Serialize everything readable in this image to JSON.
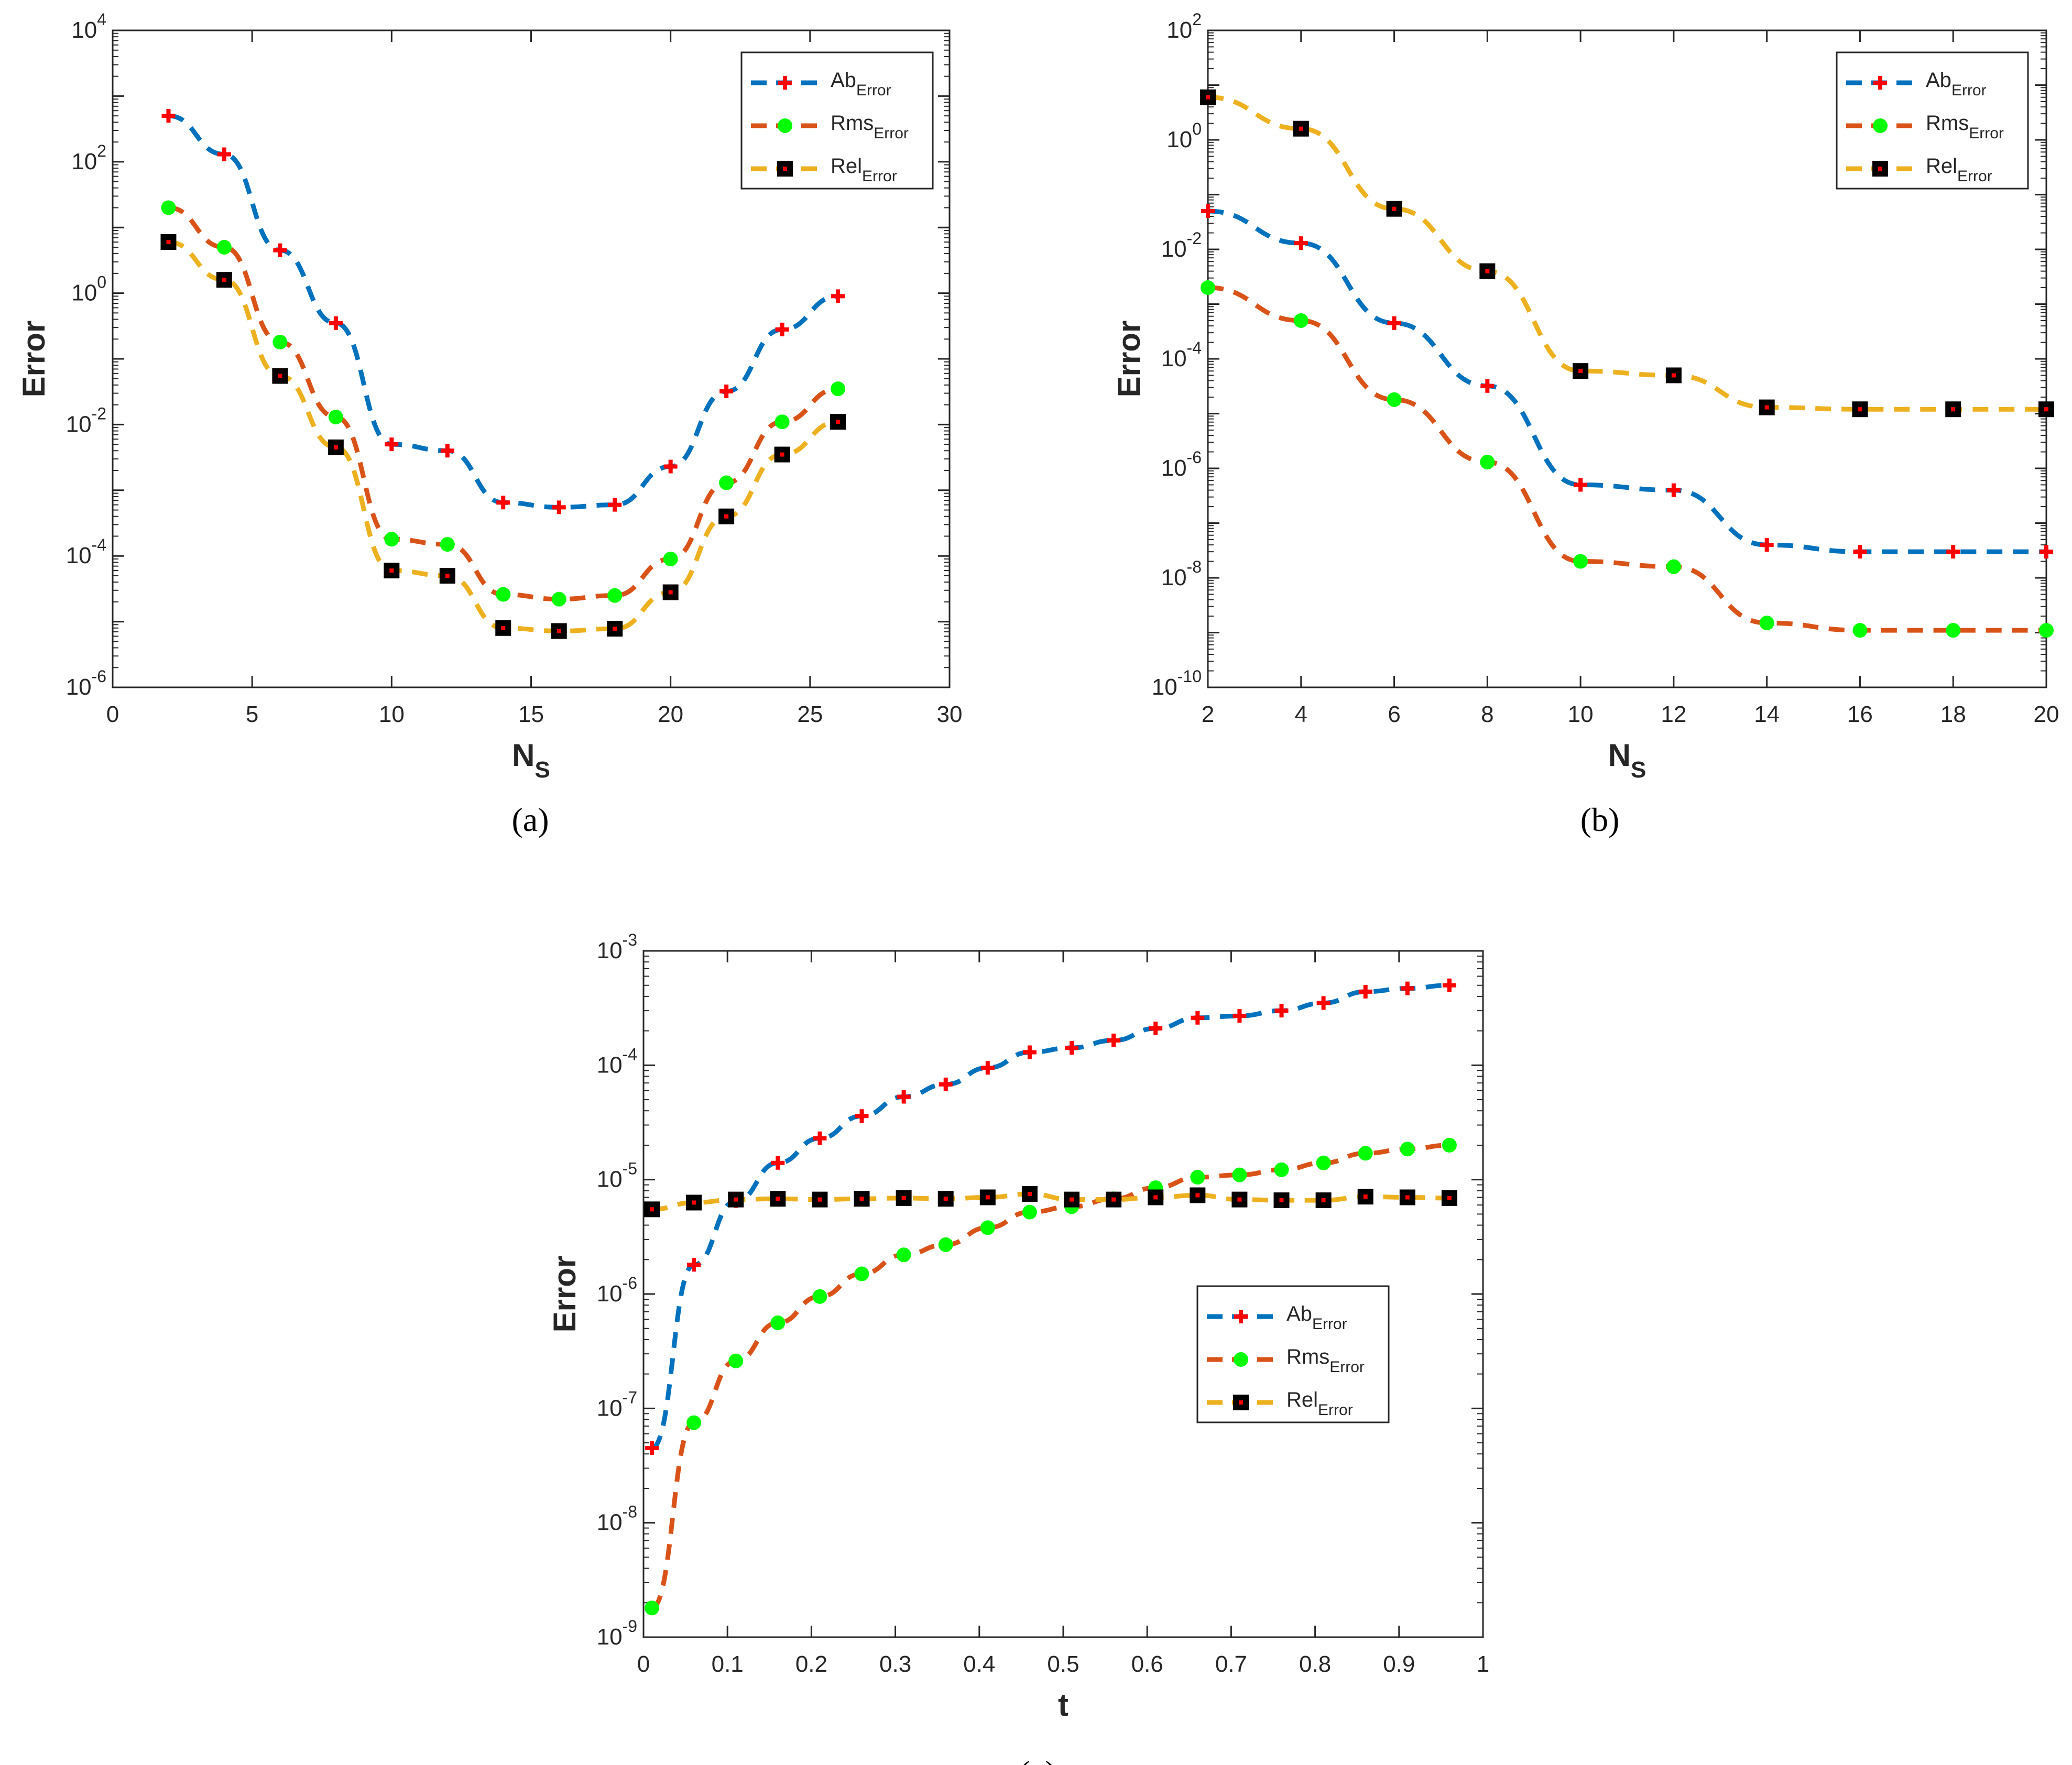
{
  "figure_captions": [
    "(a)",
    "(b)",
    "(c)"
  ],
  "colors": {
    "ab_line": "#0072BD",
    "rms_line": "#D95319",
    "rel_line": "#EDB120",
    "plus_marker": "#FF0000",
    "circle_marker": "#00FF00",
    "square_marker": "#000000",
    "square_dot": "#FF0000"
  },
  "legend": {
    "entries": [
      {
        "base": "Ab",
        "sub": "Error"
      },
      {
        "base": "Rms",
        "sub": "Error"
      },
      {
        "base": "Rel",
        "sub": "Error"
      }
    ]
  },
  "chart_data": [
    {
      "type": "line",
      "caption": "(a)",
      "xlabel": "N",
      "xlabel_sub": "S",
      "ylabel": "Error",
      "yscale": "log",
      "xlim": [
        0,
        30
      ],
      "ylim_exp": [
        -6,
        4
      ],
      "xticks": [
        "0",
        "5",
        "10",
        "15",
        "20",
        "25",
        "30"
      ],
      "xtick_values": [
        0,
        5,
        10,
        15,
        20,
        25,
        30
      ],
      "ytick_exps": [
        "-6",
        "-4",
        "-2",
        "0",
        "2",
        "4"
      ],
      "legend_position": "top-right",
      "x": [
        2,
        4,
        6,
        8,
        10,
        12,
        14,
        16,
        18,
        20,
        22,
        24,
        26
      ],
      "series": [
        {
          "name": "Ab_Error",
          "marker": "plus",
          "values": [
            500,
            130,
            4.5,
            0.35,
            0.005,
            0.004,
            0.00065,
            0.00055,
            0.0006,
            0.0023,
            0.032,
            0.28,
            0.9
          ]
        },
        {
          "name": "Rms_Error",
          "marker": "circle",
          "values": [
            20,
            5,
            0.18,
            0.013,
            0.00018,
            0.00015,
            2.6e-05,
            2.2e-05,
            2.5e-05,
            9e-05,
            0.0013,
            0.011,
            0.035
          ]
        },
        {
          "name": "Rel_Error",
          "marker": "square",
          "values": [
            6,
            1.6,
            0.055,
            0.0045,
            6e-05,
            5e-05,
            8e-06,
            7.2e-06,
            7.8e-06,
            2.8e-05,
            0.0004,
            0.0035,
            0.011
          ]
        }
      ]
    },
    {
      "type": "line",
      "caption": "(b)",
      "xlabel": "N",
      "xlabel_sub": "S",
      "ylabel": "Error",
      "yscale": "log",
      "xlim": [
        2,
        20
      ],
      "ylim_exp": [
        -10,
        2
      ],
      "xticks": [
        "2",
        "4",
        "6",
        "8",
        "10",
        "12",
        "14",
        "16",
        "18",
        "20"
      ],
      "xtick_values": [
        2,
        4,
        6,
        8,
        10,
        12,
        14,
        16,
        18,
        20
      ],
      "ytick_exps": [
        "-10",
        "-8",
        "-6",
        "-4",
        "-2",
        "0",
        "2"
      ],
      "legend_position": "top-right",
      "x": [
        2,
        4,
        6,
        8,
        10,
        12,
        14,
        16,
        18,
        20
      ],
      "series": [
        {
          "name": "Ab_Error",
          "marker": "plus",
          "values": [
            0.05,
            0.013,
            0.00045,
            3.2e-05,
            5e-07,
            4e-07,
            4e-08,
            3e-08,
            3e-08,
            3e-08
          ]
        },
        {
          "name": "Rms_Error",
          "marker": "circle",
          "values": [
            0.002,
            0.0005,
            1.8e-05,
            1.3e-06,
            2e-08,
            1.6e-08,
            1.5e-09,
            1.1e-09,
            1.1e-09,
            1.1e-09
          ]
        },
        {
          "name": "Rel_Error",
          "marker": "square",
          "values": [
            6,
            1.6,
            0.055,
            0.004,
            6e-05,
            5e-05,
            1.3e-05,
            1.2e-05,
            1.2e-05,
            1.2e-05
          ]
        }
      ]
    },
    {
      "type": "line",
      "caption": "(c)",
      "xlabel": "t",
      "xlabel_sub": "",
      "ylabel": "Error",
      "yscale": "log",
      "xlim": [
        0,
        1
      ],
      "ylim_exp": [
        -9,
        -3
      ],
      "xticks": [
        "0",
        "0.1",
        "0.2",
        "0.3",
        "0.4",
        "0.5",
        "0.6",
        "0.7",
        "0.8",
        "0.9",
        "1"
      ],
      "xtick_values": [
        0,
        0.1,
        0.2,
        0.3,
        0.4,
        0.5,
        0.6,
        0.7,
        0.8,
        0.9,
        1
      ],
      "ytick_exps": [
        "-9",
        "-8",
        "-7",
        "-6",
        "-5",
        "-4",
        "-3"
      ],
      "legend_position": "middle-right",
      "x": [
        0.01,
        0.06,
        0.11,
        0.16,
        0.21,
        0.26,
        0.31,
        0.36,
        0.41,
        0.46,
        0.51,
        0.56,
        0.61,
        0.66,
        0.71,
        0.76,
        0.81,
        0.86,
        0.91,
        0.96
      ],
      "series": [
        {
          "name": "Ab_Error",
          "marker": "plus",
          "values": [
            4.5e-08,
            1.8e-06,
            6.5e-06,
            1.4e-05,
            2.3e-05,
            3.6e-05,
            5.3e-05,
            6.8e-05,
            9.5e-05,
            0.00013,
            0.000142,
            0.000165,
            0.00021,
            0.00026,
            0.00027,
            0.0003,
            0.00035,
            0.00044,
            0.00047,
            0.0005
          ]
        },
        {
          "name": "Rms_Error",
          "marker": "circle",
          "values": [
            1.8e-09,
            7.5e-08,
            2.6e-07,
            5.6e-07,
            9.5e-07,
            1.5e-06,
            2.2e-06,
            2.7e-06,
            3.8e-06,
            5.2e-06,
            5.8e-06,
            6.8e-06,
            8.5e-06,
            1.05e-05,
            1.1e-05,
            1.22e-05,
            1.4e-05,
            1.7e-05,
            1.85e-05,
            2e-05
          ]
        },
        {
          "name": "Rel_Error",
          "marker": "square",
          "values": [
            5.5e-06,
            6.3e-06,
            6.7e-06,
            6.8e-06,
            6.7e-06,
            6.8e-06,
            6.9e-06,
            6.8e-06,
            7e-06,
            7.5e-06,
            6.7e-06,
            6.7e-06,
            7e-06,
            7.3e-06,
            6.7e-06,
            6.6e-06,
            6.6e-06,
            7.1e-06,
            7e-06,
            6.9e-06
          ]
        }
      ]
    }
  ]
}
